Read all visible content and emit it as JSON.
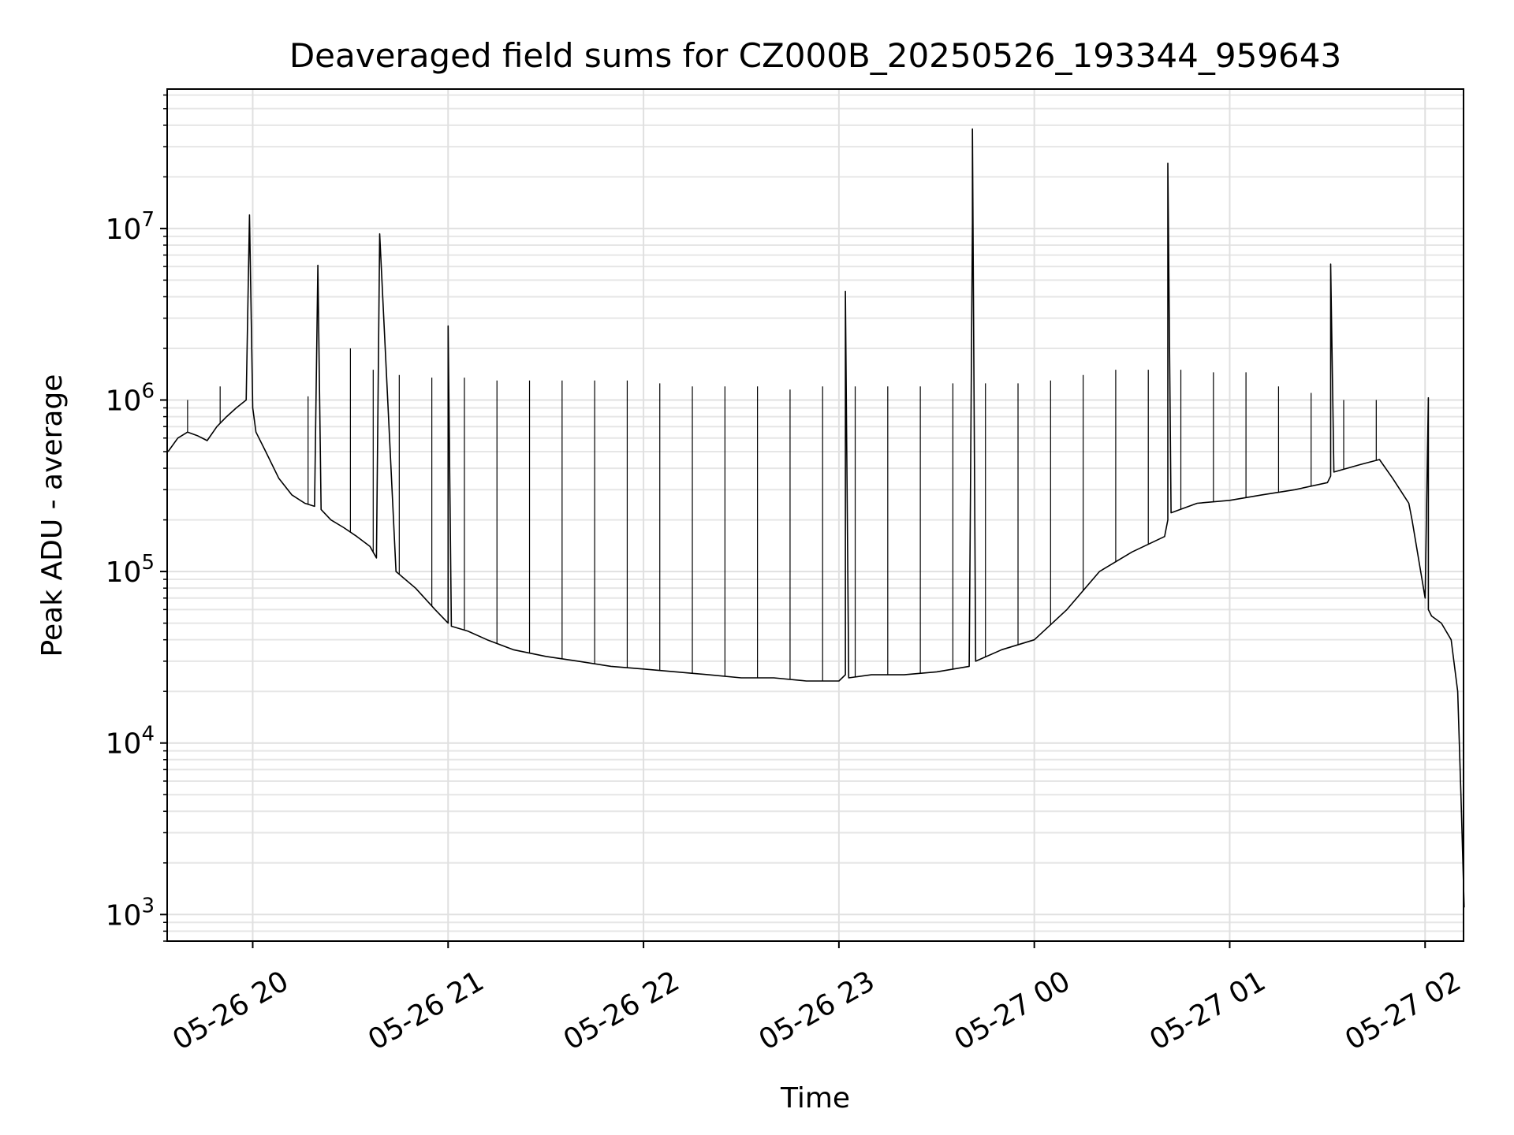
{
  "chart_data": {
    "type": "line",
    "title": "Deaveraged field sums for CZ000B_20250526_193344_959643",
    "xlabel": "Time",
    "ylabel": "Peak ADU - average",
    "yscale": "log",
    "ylim": [
      700,
      65000000
    ],
    "xlim": [
      "2025-05-26 19:33:44",
      "2025-05-27 02:11:48"
    ],
    "grid": true,
    "legend": "none",
    "line_color": "#000000",
    "x_ticks": [
      {
        "t": "2025-05-26 20:00",
        "label": "05-26 20"
      },
      {
        "t": "2025-05-26 21:00",
        "label": "05-26 21"
      },
      {
        "t": "2025-05-26 22:00",
        "label": "05-26 22"
      },
      {
        "t": "2025-05-26 23:00",
        "label": "05-26 23"
      },
      {
        "t": "2025-05-27 00:00",
        "label": "05-27 00"
      },
      {
        "t": "2025-05-27 01:00",
        "label": "05-27 01"
      },
      {
        "t": "2025-05-27 02:00",
        "label": "05-27 02"
      }
    ],
    "y_ticks": [
      {
        "value": 1000,
        "base": "10",
        "exp": "3"
      },
      {
        "value": 10000,
        "base": "10",
        "exp": "4"
      },
      {
        "value": 100000,
        "base": "10",
        "exp": "5"
      },
      {
        "value": 1000000,
        "base": "10",
        "exp": "6"
      },
      {
        "value": 10000000,
        "base": "10",
        "exp": "7"
      }
    ],
    "series": [
      {
        "x": [
          "2025-05-26 19:34",
          "2025-05-26 19:37",
          "2025-05-26 19:40",
          "2025-05-26 19:43",
          "2025-05-26 19:46",
          "2025-05-26 19:49",
          "2025-05-26 19:52",
          "2025-05-26 19:55",
          "2025-05-26 19:58",
          "2025-05-26 19:59",
          "2025-05-26 20:00",
          "2025-05-26 20:01",
          "2025-05-26 20:04",
          "2025-05-26 20:08",
          "2025-05-26 20:12",
          "2025-05-26 20:16",
          "2025-05-26 20:19",
          "2025-05-26 20:20",
          "2025-05-26 20:21",
          "2025-05-26 20:24",
          "2025-05-26 20:28",
          "2025-05-26 20:32",
          "2025-05-26 20:36",
          "2025-05-26 20:38",
          "2025-05-26 20:39",
          "2025-05-26 20:44",
          "2025-05-26 20:50",
          "2025-05-26 20:56",
          "2025-05-26 21:00",
          "2025-05-26 21:00",
          "2025-05-26 21:01",
          "2025-05-26 21:06",
          "2025-05-26 21:12",
          "2025-05-26 21:20",
          "2025-05-26 21:30",
          "2025-05-26 21:40",
          "2025-05-26 21:50",
          "2025-05-26 22:00",
          "2025-05-26 22:10",
          "2025-05-26 22:20",
          "2025-05-26 22:30",
          "2025-05-26 22:40",
          "2025-05-26 22:50",
          "2025-05-26 23:00",
          "2025-05-26 23:02",
          "2025-05-26 23:02",
          "2025-05-26 23:03",
          "2025-05-26 23:10",
          "2025-05-26 23:20",
          "2025-05-26 23:30",
          "2025-05-26 23:40",
          "2025-05-26 23:41",
          "2025-05-26 23:41",
          "2025-05-26 23:42",
          "2025-05-26 23:50",
          "2025-05-27 00:00",
          "2025-05-27 00:10",
          "2025-05-27 00:20",
          "2025-05-27 00:30",
          "2025-05-27 00:40",
          "2025-05-27 00:41",
          "2025-05-27 00:41",
          "2025-05-27 00:42",
          "2025-05-27 00:50",
          "2025-05-27 01:00",
          "2025-05-27 01:10",
          "2025-05-27 01:20",
          "2025-05-27 01:30",
          "2025-05-27 01:31",
          "2025-05-27 01:31",
          "2025-05-27 01:32",
          "2025-05-27 01:40",
          "2025-05-27 01:46",
          "2025-05-27 01:50",
          "2025-05-27 01:55",
          "2025-05-27 01:56",
          "2025-05-27 02:00",
          "2025-05-27 02:01",
          "2025-05-27 02:01",
          "2025-05-27 02:02",
          "2025-05-27 02:05",
          "2025-05-27 02:08",
          "2025-05-27 02:10",
          "2025-05-27 02:11",
          "2025-05-27 02:12"
        ],
        "y": [
          500000,
          600000,
          650000,
          620000,
          580000,
          700000,
          800000,
          900000,
          1000000,
          12000000,
          900000,
          650000,
          500000,
          350000,
          280000,
          250000,
          240000,
          6100000,
          230000,
          200000,
          180000,
          160000,
          140000,
          120000,
          9300000,
          100000,
          80000,
          60000,
          50000,
          2700000,
          48000,
          45000,
          40000,
          35000,
          32000,
          30000,
          28000,
          27000,
          26000,
          25000,
          24000,
          24000,
          23000,
          23000,
          25000,
          4300000,
          24000,
          25000,
          25000,
          26000,
          28000,
          10800000,
          38000000,
          30000,
          35000,
          40000,
          60000,
          100000,
          130000,
          160000,
          200000,
          24000000,
          220000,
          250000,
          260000,
          280000,
          300000,
          330000,
          360000,
          6200000,
          380000,
          420000,
          450000,
          350000,
          250000,
          200000,
          70000,
          1030000,
          60000,
          55000,
          50000,
          40000,
          20000,
          5000,
          1100
        ]
      }
    ],
    "spikes": {
      "x": [
        "2025-05-26 19:40",
        "2025-05-26 19:50",
        "2025-05-26 20:17",
        "2025-05-26 20:30",
        "2025-05-26 20:37",
        "2025-05-26 20:45",
        "2025-05-26 20:55",
        "2025-05-26 21:05",
        "2025-05-26 21:15",
        "2025-05-26 21:25",
        "2025-05-26 21:35",
        "2025-05-26 21:45",
        "2025-05-26 21:55",
        "2025-05-26 22:05",
        "2025-05-26 22:15",
        "2025-05-26 22:25",
        "2025-05-26 22:35",
        "2025-05-26 22:45",
        "2025-05-26 22:55",
        "2025-05-26 23:05",
        "2025-05-26 23:15",
        "2025-05-26 23:25",
        "2025-05-26 23:35",
        "2025-05-26 23:45",
        "2025-05-26 23:55",
        "2025-05-27 00:05",
        "2025-05-27 00:15",
        "2025-05-27 00:25",
        "2025-05-27 00:35",
        "2025-05-27 00:45",
        "2025-05-27 00:55",
        "2025-05-27 01:05",
        "2025-05-27 01:15",
        "2025-05-27 01:25",
        "2025-05-27 01:35",
        "2025-05-27 01:45"
      ],
      "y": [
        1000000,
        1200000,
        1050000,
        2000000,
        1500000,
        1400000,
        1350000,
        1350000,
        1300000,
        1300000,
        1300000,
        1300000,
        1300000,
        1250000,
        1200000,
        1200000,
        1200000,
        1150000,
        1200000,
        1200000,
        1200000,
        1200000,
        1250000,
        1250000,
        1250000,
        1300000,
        1400000,
        1500000,
        1500000,
        1500000,
        1450000,
        1450000,
        1200000,
        1100000,
        1000000,
        1000000
      ]
    }
  }
}
